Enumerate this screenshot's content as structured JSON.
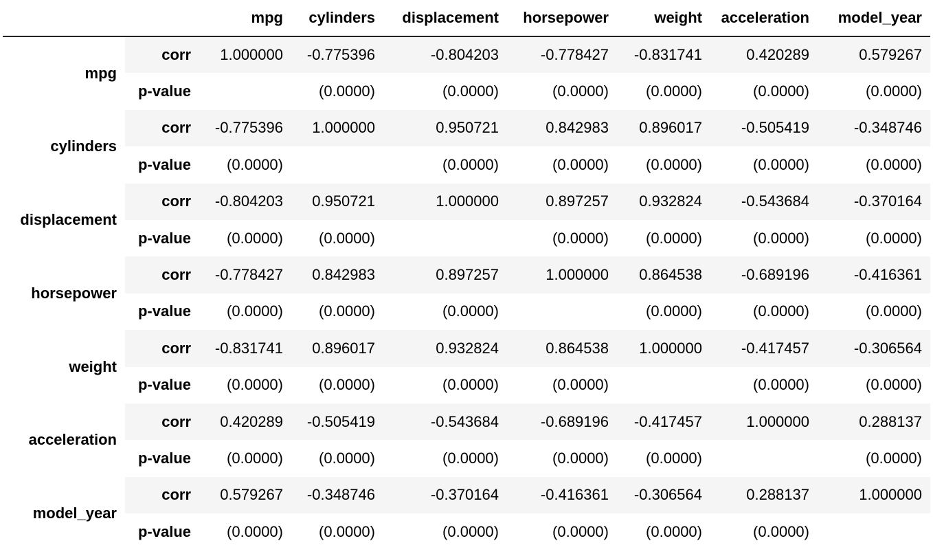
{
  "table": {
    "columns": [
      "mpg",
      "cylinders",
      "displacement",
      "horsepower",
      "weight",
      "acceleration",
      "model_year"
    ],
    "rows": [
      {
        "name": "mpg",
        "corr": [
          "1.000000",
          "-0.775396",
          "-0.804203",
          "-0.778427",
          "-0.831741",
          "0.420289",
          "0.579267"
        ],
        "pvalue": [
          "",
          "(0.0000)",
          "(0.0000)",
          "(0.0000)",
          "(0.0000)",
          "(0.0000)",
          "(0.0000)"
        ]
      },
      {
        "name": "cylinders",
        "corr": [
          "-0.775396",
          "1.000000",
          "0.950721",
          "0.842983",
          "0.896017",
          "-0.505419",
          "-0.348746"
        ],
        "pvalue": [
          "(0.0000)",
          "",
          "(0.0000)",
          "(0.0000)",
          "(0.0000)",
          "(0.0000)",
          "(0.0000)"
        ]
      },
      {
        "name": "displacement",
        "corr": [
          "-0.804203",
          "0.950721",
          "1.000000",
          "0.897257",
          "0.932824",
          "-0.543684",
          "-0.370164"
        ],
        "pvalue": [
          "(0.0000)",
          "(0.0000)",
          "",
          "(0.0000)",
          "(0.0000)",
          "(0.0000)",
          "(0.0000)"
        ]
      },
      {
        "name": "horsepower",
        "corr": [
          "-0.778427",
          "0.842983",
          "0.897257",
          "1.000000",
          "0.864538",
          "-0.689196",
          "-0.416361"
        ],
        "pvalue": [
          "(0.0000)",
          "(0.0000)",
          "(0.0000)",
          "",
          "(0.0000)",
          "(0.0000)",
          "(0.0000)"
        ]
      },
      {
        "name": "weight",
        "corr": [
          "-0.831741",
          "0.896017",
          "0.932824",
          "0.864538",
          "1.000000",
          "-0.417457",
          "-0.306564"
        ],
        "pvalue": [
          "(0.0000)",
          "(0.0000)",
          "(0.0000)",
          "(0.0000)",
          "",
          "(0.0000)",
          "(0.0000)"
        ]
      },
      {
        "name": "acceleration",
        "corr": [
          "0.420289",
          "-0.505419",
          "-0.543684",
          "-0.689196",
          "-0.417457",
          "1.000000",
          "0.288137"
        ],
        "pvalue": [
          "(0.0000)",
          "(0.0000)",
          "(0.0000)",
          "(0.0000)",
          "(0.0000)",
          "",
          "(0.0000)"
        ]
      },
      {
        "name": "model_year",
        "corr": [
          "0.579267",
          "-0.348746",
          "-0.370164",
          "-0.416361",
          "-0.306564",
          "0.288137",
          "1.000000"
        ],
        "pvalue": [
          "(0.0000)",
          "(0.0000)",
          "(0.0000)",
          "(0.0000)",
          "(0.0000)",
          "(0.0000)",
          ""
        ]
      }
    ],
    "stat_labels": {
      "corr": "corr",
      "pvalue": "p-value"
    }
  }
}
